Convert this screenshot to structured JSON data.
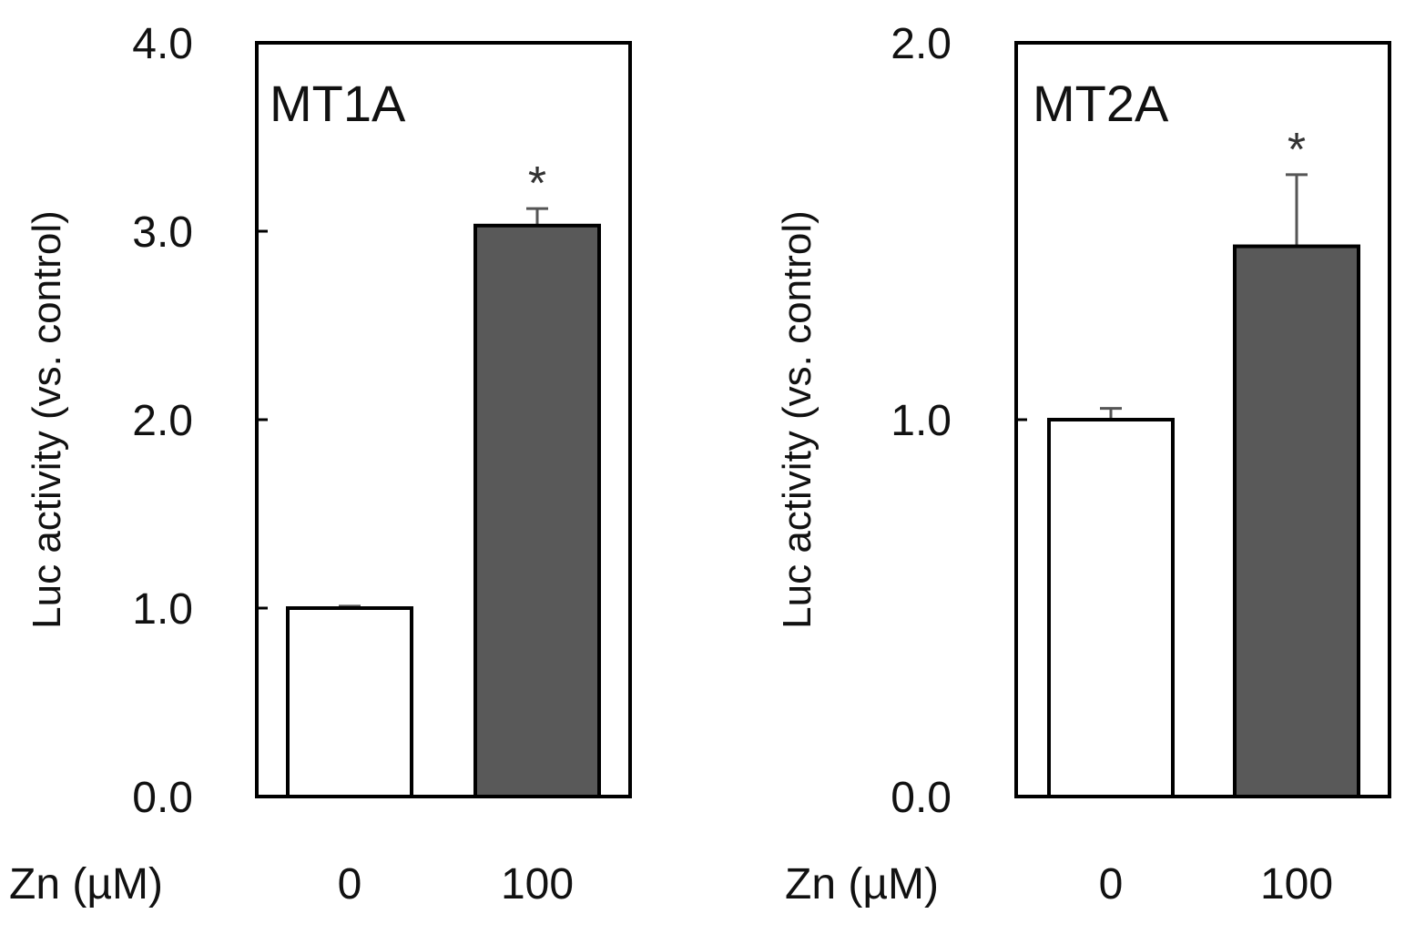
{
  "x_axis_label": "Zn (µM)",
  "chart_data": [
    {
      "type": "bar",
      "title": "MT1A",
      "xlabel": "Zn (µM)",
      "ylabel": "Luc activity (vs. control)",
      "ylim": [
        0,
        4.0
      ],
      "yticks": [
        0,
        1,
        2,
        3,
        4
      ],
      "ytick_labels": [
        "0.0",
        "1.0",
        "2.0",
        "3.0",
        "4.0"
      ],
      "categories": [
        "0",
        "100"
      ],
      "values": [
        1.0,
        3.03
      ],
      "errors": [
        0.01,
        0.09
      ],
      "significance": [
        "",
        "*"
      ],
      "colors": [
        "#ffffff",
        "#595959"
      ]
    },
    {
      "type": "bar",
      "title": "MT2A",
      "xlabel": "Zn (µM)",
      "ylabel": "Luc activity (vs. control)",
      "ylim": [
        0,
        2.0
      ],
      "yticks": [
        0,
        1,
        2
      ],
      "ytick_labels": [
        "0.0",
        "1.0",
        "2.0"
      ],
      "categories": [
        "0",
        "100"
      ],
      "values": [
        1.0,
        1.46
      ],
      "errors": [
        0.03,
        0.19
      ],
      "significance": [
        "",
        "*"
      ],
      "colors": [
        "#ffffff",
        "#595959"
      ]
    }
  ]
}
